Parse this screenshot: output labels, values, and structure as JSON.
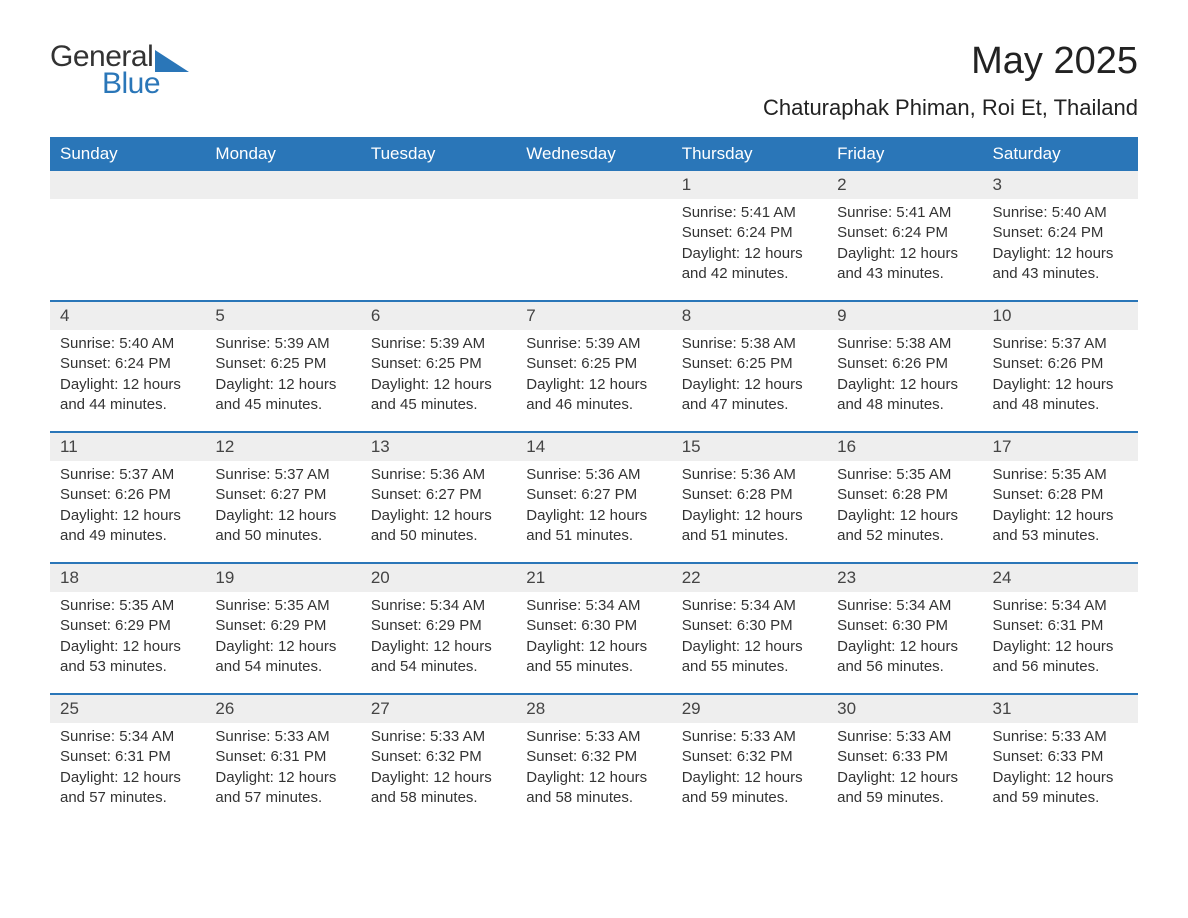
{
  "logo": {
    "main": "General",
    "sub": "Blue",
    "triangle_color": "#2a76b8"
  },
  "title": "May 2025",
  "location": "Chaturaphak Phiman, Roi Et, Thailand",
  "colors": {
    "header_bar": "#2a76b8",
    "header_text": "#ffffff",
    "day_num_bg": "#eeeeee",
    "week_divider": "#2a76b8",
    "body_text": "#333333"
  },
  "weekdays": [
    "Sunday",
    "Monday",
    "Tuesday",
    "Wednesday",
    "Thursday",
    "Friday",
    "Saturday"
  ],
  "weeks": [
    [
      {
        "day": "",
        "lines": []
      },
      {
        "day": "",
        "lines": []
      },
      {
        "day": "",
        "lines": []
      },
      {
        "day": "",
        "lines": []
      },
      {
        "day": "1",
        "lines": [
          "Sunrise: 5:41 AM",
          "Sunset: 6:24 PM",
          "Daylight: 12 hours and 42 minutes."
        ]
      },
      {
        "day": "2",
        "lines": [
          "Sunrise: 5:41 AM",
          "Sunset: 6:24 PM",
          "Daylight: 12 hours and 43 minutes."
        ]
      },
      {
        "day": "3",
        "lines": [
          "Sunrise: 5:40 AM",
          "Sunset: 6:24 PM",
          "Daylight: 12 hours and 43 minutes."
        ]
      }
    ],
    [
      {
        "day": "4",
        "lines": [
          "Sunrise: 5:40 AM",
          "Sunset: 6:24 PM",
          "Daylight: 12 hours and 44 minutes."
        ]
      },
      {
        "day": "5",
        "lines": [
          "Sunrise: 5:39 AM",
          "Sunset: 6:25 PM",
          "Daylight: 12 hours and 45 minutes."
        ]
      },
      {
        "day": "6",
        "lines": [
          "Sunrise: 5:39 AM",
          "Sunset: 6:25 PM",
          "Daylight: 12 hours and 45 minutes."
        ]
      },
      {
        "day": "7",
        "lines": [
          "Sunrise: 5:39 AM",
          "Sunset: 6:25 PM",
          "Daylight: 12 hours and 46 minutes."
        ]
      },
      {
        "day": "8",
        "lines": [
          "Sunrise: 5:38 AM",
          "Sunset: 6:25 PM",
          "Daylight: 12 hours and 47 minutes."
        ]
      },
      {
        "day": "9",
        "lines": [
          "Sunrise: 5:38 AM",
          "Sunset: 6:26 PM",
          "Daylight: 12 hours and 48 minutes."
        ]
      },
      {
        "day": "10",
        "lines": [
          "Sunrise: 5:37 AM",
          "Sunset: 6:26 PM",
          "Daylight: 12 hours and 48 minutes."
        ]
      }
    ],
    [
      {
        "day": "11",
        "lines": [
          "Sunrise: 5:37 AM",
          "Sunset: 6:26 PM",
          "Daylight: 12 hours and 49 minutes."
        ]
      },
      {
        "day": "12",
        "lines": [
          "Sunrise: 5:37 AM",
          "Sunset: 6:27 PM",
          "Daylight: 12 hours and 50 minutes."
        ]
      },
      {
        "day": "13",
        "lines": [
          "Sunrise: 5:36 AM",
          "Sunset: 6:27 PM",
          "Daylight: 12 hours and 50 minutes."
        ]
      },
      {
        "day": "14",
        "lines": [
          "Sunrise: 5:36 AM",
          "Sunset: 6:27 PM",
          "Daylight: 12 hours and 51 minutes."
        ]
      },
      {
        "day": "15",
        "lines": [
          "Sunrise: 5:36 AM",
          "Sunset: 6:28 PM",
          "Daylight: 12 hours and 51 minutes."
        ]
      },
      {
        "day": "16",
        "lines": [
          "Sunrise: 5:35 AM",
          "Sunset: 6:28 PM",
          "Daylight: 12 hours and 52 minutes."
        ]
      },
      {
        "day": "17",
        "lines": [
          "Sunrise: 5:35 AM",
          "Sunset: 6:28 PM",
          "Daylight: 12 hours and 53 minutes."
        ]
      }
    ],
    [
      {
        "day": "18",
        "lines": [
          "Sunrise: 5:35 AM",
          "Sunset: 6:29 PM",
          "Daylight: 12 hours and 53 minutes."
        ]
      },
      {
        "day": "19",
        "lines": [
          "Sunrise: 5:35 AM",
          "Sunset: 6:29 PM",
          "Daylight: 12 hours and 54 minutes."
        ]
      },
      {
        "day": "20",
        "lines": [
          "Sunrise: 5:34 AM",
          "Sunset: 6:29 PM",
          "Daylight: 12 hours and 54 minutes."
        ]
      },
      {
        "day": "21",
        "lines": [
          "Sunrise: 5:34 AM",
          "Sunset: 6:30 PM",
          "Daylight: 12 hours and 55 minutes."
        ]
      },
      {
        "day": "22",
        "lines": [
          "Sunrise: 5:34 AM",
          "Sunset: 6:30 PM",
          "Daylight: 12 hours and 55 minutes."
        ]
      },
      {
        "day": "23",
        "lines": [
          "Sunrise: 5:34 AM",
          "Sunset: 6:30 PM",
          "Daylight: 12 hours and 56 minutes."
        ]
      },
      {
        "day": "24",
        "lines": [
          "Sunrise: 5:34 AM",
          "Sunset: 6:31 PM",
          "Daylight: 12 hours and 56 minutes."
        ]
      }
    ],
    [
      {
        "day": "25",
        "lines": [
          "Sunrise: 5:34 AM",
          "Sunset: 6:31 PM",
          "Daylight: 12 hours and 57 minutes."
        ]
      },
      {
        "day": "26",
        "lines": [
          "Sunrise: 5:33 AM",
          "Sunset: 6:31 PM",
          "Daylight: 12 hours and 57 minutes."
        ]
      },
      {
        "day": "27",
        "lines": [
          "Sunrise: 5:33 AM",
          "Sunset: 6:32 PM",
          "Daylight: 12 hours and 58 minutes."
        ]
      },
      {
        "day": "28",
        "lines": [
          "Sunrise: 5:33 AM",
          "Sunset: 6:32 PM",
          "Daylight: 12 hours and 58 minutes."
        ]
      },
      {
        "day": "29",
        "lines": [
          "Sunrise: 5:33 AM",
          "Sunset: 6:32 PM",
          "Daylight: 12 hours and 59 minutes."
        ]
      },
      {
        "day": "30",
        "lines": [
          "Sunrise: 5:33 AM",
          "Sunset: 6:33 PM",
          "Daylight: 12 hours and 59 minutes."
        ]
      },
      {
        "day": "31",
        "lines": [
          "Sunrise: 5:33 AM",
          "Sunset: 6:33 PM",
          "Daylight: 12 hours and 59 minutes."
        ]
      }
    ]
  ]
}
